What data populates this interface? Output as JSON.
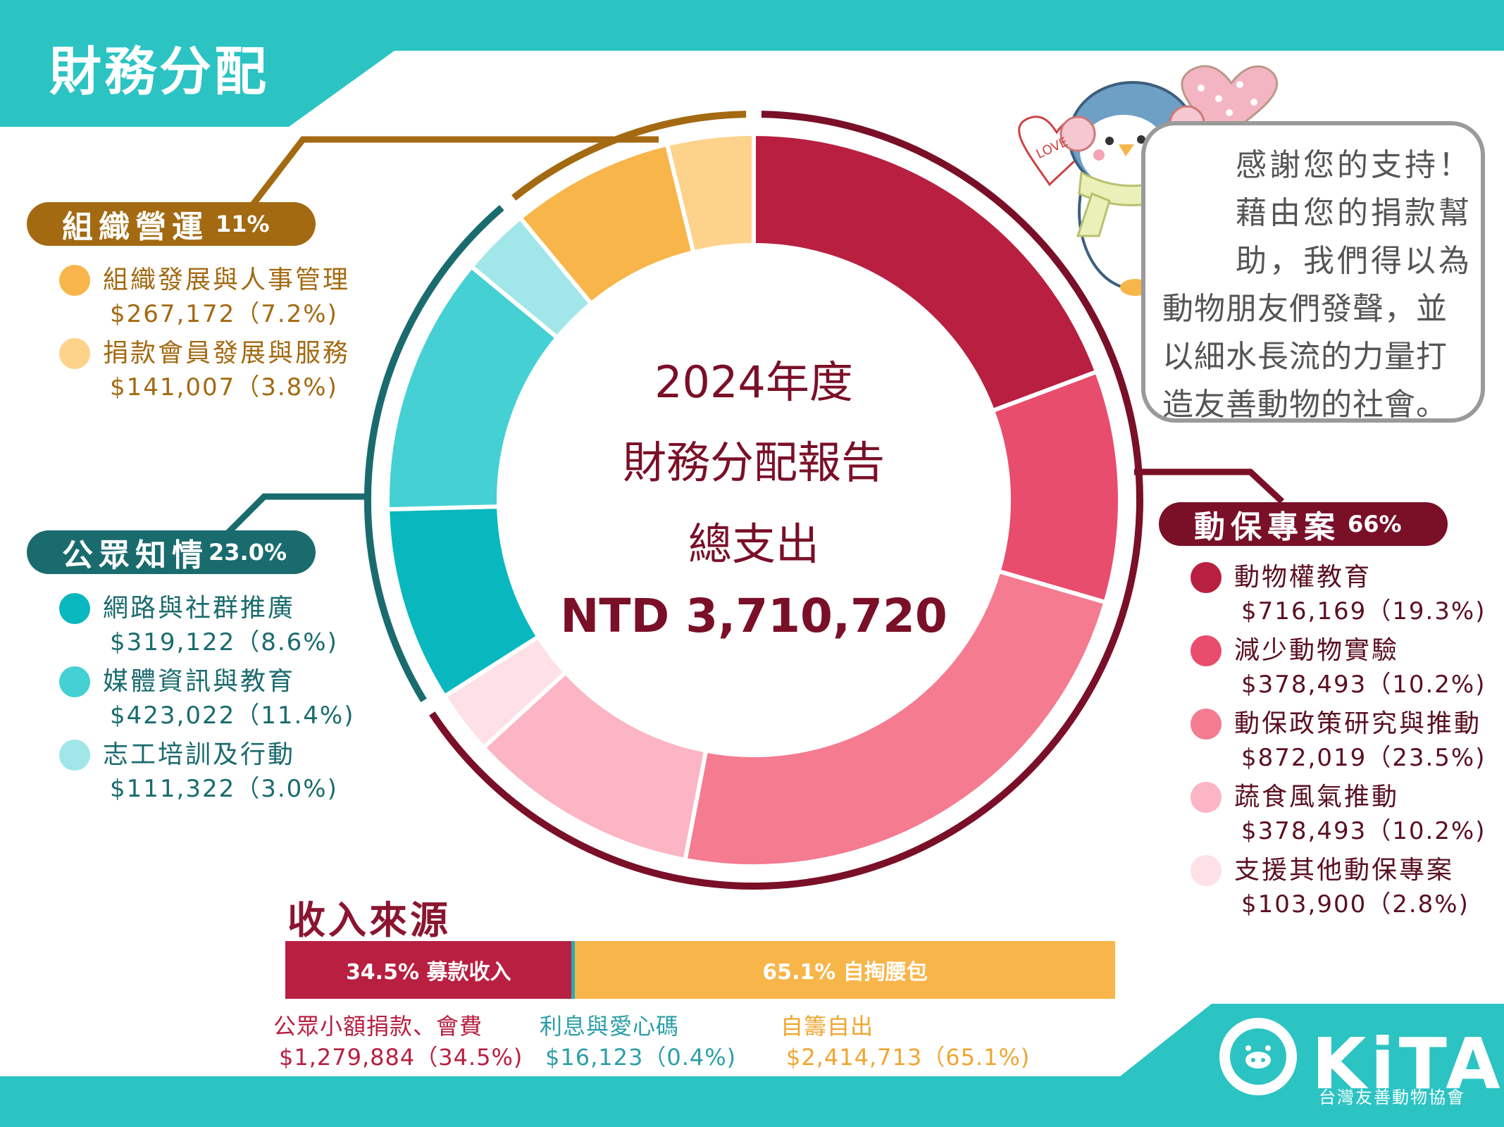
{
  "page_title": "財務分配",
  "center": {
    "line1": "2024年度",
    "line2": "財務分配報告",
    "line3": "總支出",
    "line4": "NTD 3,710,720"
  },
  "message": [
    "感謝您的支持！",
    "藉由您的捐款幫",
    "助，我們得以為",
    "動物朋友們發聲，並",
    "以細水長流的力量打",
    "造友善動物的社會。"
  ],
  "mascot_heart_text": "LOVE",
  "groups": {
    "operations": {
      "name": "組織營運",
      "percent": "11%",
      "color": "#a36a12"
    },
    "awareness": {
      "name": "公眾知情",
      "percent": "23.0%",
      "color": "#1a6b6e"
    },
    "projects": {
      "name": "動保專案",
      "percent": "66%",
      "color": "#7a0f28"
    }
  },
  "legend": {
    "operations": [
      {
        "label": "組織發展與人事管理",
        "value": "$267,172（7.2%)",
        "color": "#f8b549"
      },
      {
        "label": "捐款會員發展與服務",
        "value": "$141,007（3.8%)",
        "color": "#fdd38c"
      }
    ],
    "awareness": [
      {
        "label": "網路與社群推廣",
        "value": "$319,122（8.6%)",
        "color": "#09b8be"
      },
      {
        "label": "媒體資訊與教育",
        "value": "$423,022（11.4%)",
        "color": "#45d0d3"
      },
      {
        "label": "志工培訓及行動",
        "value": "$111,322（3.0%)",
        "color": "#a1e6e8"
      }
    ],
    "projects": [
      {
        "label": "動物權教育",
        "value": "$716,169（19.3%)",
        "color": "#b81f40"
      },
      {
        "label": "減少動物實驗",
        "value": "$378,493（10.2%)",
        "color": "#e84d6d"
      },
      {
        "label": "動保政策研究與推動",
        "value": "$872,019（23.5%)",
        "color": "#f47b90"
      },
      {
        "label": "蔬食風氣推動",
        "value": "$378,493（10.2%)",
        "color": "#fbb5c4"
      },
      {
        "label": "支援其他動保專案",
        "value": "$103,900（2.8%)",
        "color": "#fde1e7"
      }
    ]
  },
  "chart_data": [
    {
      "type": "pie",
      "title": "2024年度 財務分配報告",
      "total": 3710720,
      "slices": [
        {
          "name": "動物權教育",
          "value": 716169,
          "percent": 19.3,
          "group": "動保專案",
          "color": "#b81f40"
        },
        {
          "name": "減少動物實驗",
          "value": 378493,
          "percent": 10.2,
          "group": "動保專案",
          "color": "#e84d6d"
        },
        {
          "name": "動保政策研究與推動",
          "value": 872019,
          "percent": 23.5,
          "group": "動保專案",
          "color": "#f47b90"
        },
        {
          "name": "蔬食風氣推動",
          "value": 378493,
          "percent": 10.2,
          "group": "動保專案",
          "color": "#fbb5c4"
        },
        {
          "name": "支援其他動保專案",
          "value": 103900,
          "percent": 2.8,
          "group": "動保專案",
          "color": "#fde1e7"
        },
        {
          "name": "網路與社群推廣",
          "value": 319122,
          "percent": 8.6,
          "group": "公眾知情",
          "color": "#09b8be"
        },
        {
          "name": "媒體資訊與教育",
          "value": 423022,
          "percent": 11.4,
          "group": "公眾知情",
          "color": "#45d0d3"
        },
        {
          "name": "志工培訓及行動",
          "value": 111322,
          "percent": 3.0,
          "group": "公眾知情",
          "color": "#a1e6e8"
        },
        {
          "name": "組織發展與人事管理",
          "value": 267172,
          "percent": 7.2,
          "group": "組織營運",
          "color": "#f8b549"
        },
        {
          "name": "捐款會員發展與服務",
          "value": 141007,
          "percent": 3.8,
          "group": "組織營運",
          "color": "#fdd38c"
        }
      ]
    },
    {
      "type": "bar",
      "title": "收入來源",
      "segments": [
        {
          "name": "公眾小額捐款、會費",
          "bar_label": "34.5% 募款收入",
          "value": 1279884,
          "percent": 34.5,
          "color": "#b81f40"
        },
        {
          "name": "利息與愛心碼",
          "bar_label": "",
          "value": 16123,
          "percent": 0.4,
          "color": "#2ba9b8"
        },
        {
          "name": "自籌自出",
          "bar_label": "65.1% 自掏腰包",
          "value": 2414713,
          "percent": 65.1,
          "color": "#f8b549"
        }
      ]
    }
  ],
  "income": {
    "title": "收入來源",
    "labels": [
      {
        "name": "公眾小額捐款、會費",
        "value": "$1,279,884（34.5%)",
        "color": "#b81f40"
      },
      {
        "name": "利息與愛心碼",
        "value": "$16,123（0.4%)",
        "color": "#2b9fa8"
      },
      {
        "name": "自籌自出",
        "value": "$2,414,713（65.1%)",
        "color": "#f0a530"
      }
    ]
  },
  "brand": {
    "logo": "KiTA",
    "subtitle": "台灣友善動物協會",
    "accent": "#2cc3c3"
  }
}
